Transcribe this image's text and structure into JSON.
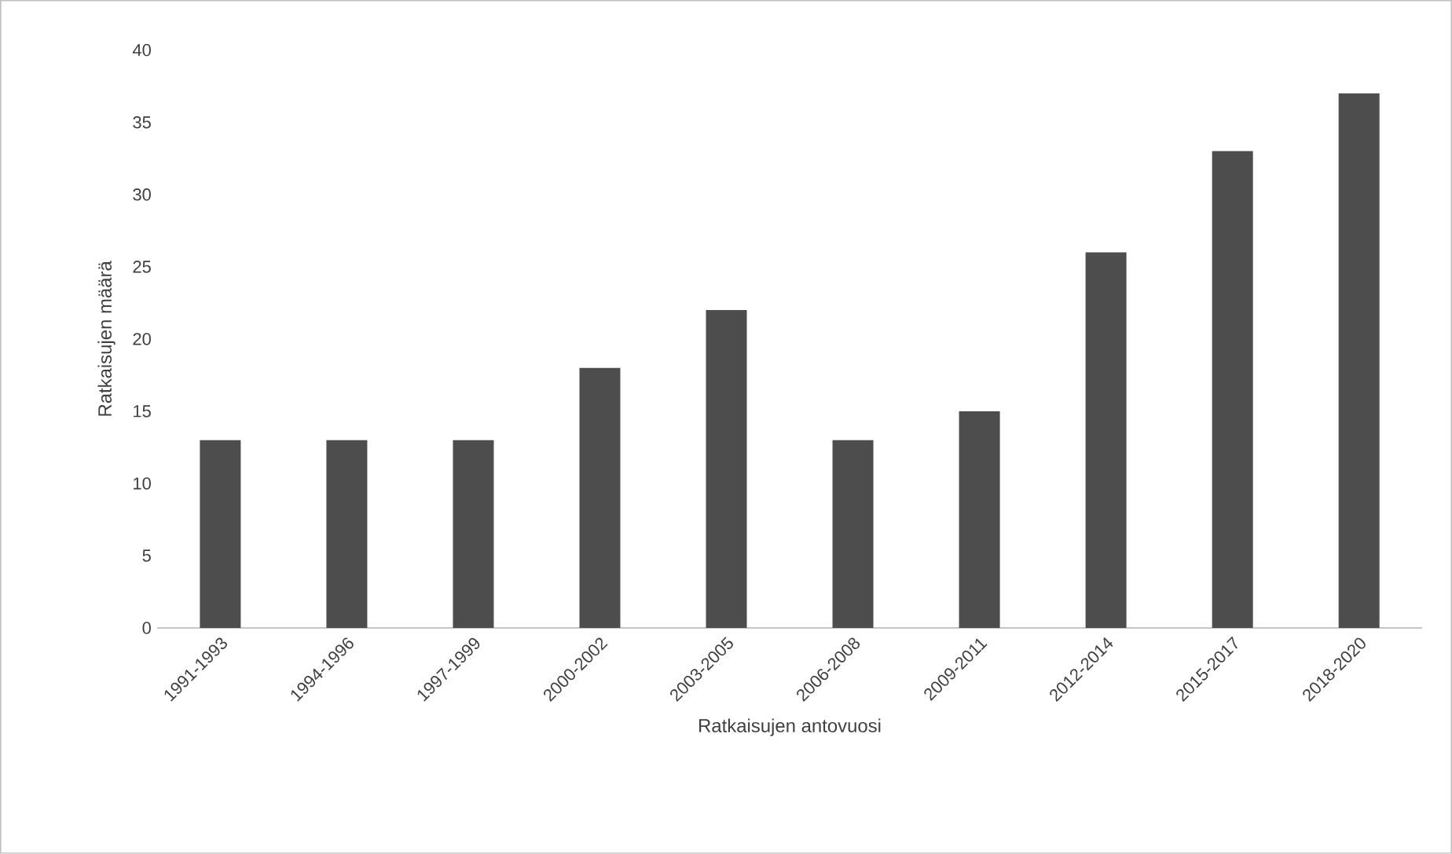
{
  "chart_data": {
    "type": "bar",
    "xlabel": "Ratkaisujen antovuosi",
    "ylabel": "Ratkaisujen määrä",
    "categories": [
      "1991-1993",
      "1994-1996",
      "1997-1999",
      "2000-2002",
      "2003-2005",
      "2006-2008",
      "2009-2011",
      "2012-2014",
      "2015-2017",
      "2018-2020"
    ],
    "values": [
      13,
      13,
      13,
      18,
      22,
      13,
      15,
      26,
      33,
      37
    ],
    "color": "#4d4d4d",
    "ylim": [
      0,
      40
    ],
    "yticks": [
      0,
      5,
      10,
      15,
      20,
      25,
      30,
      35,
      40
    ],
    "grid": false
  }
}
